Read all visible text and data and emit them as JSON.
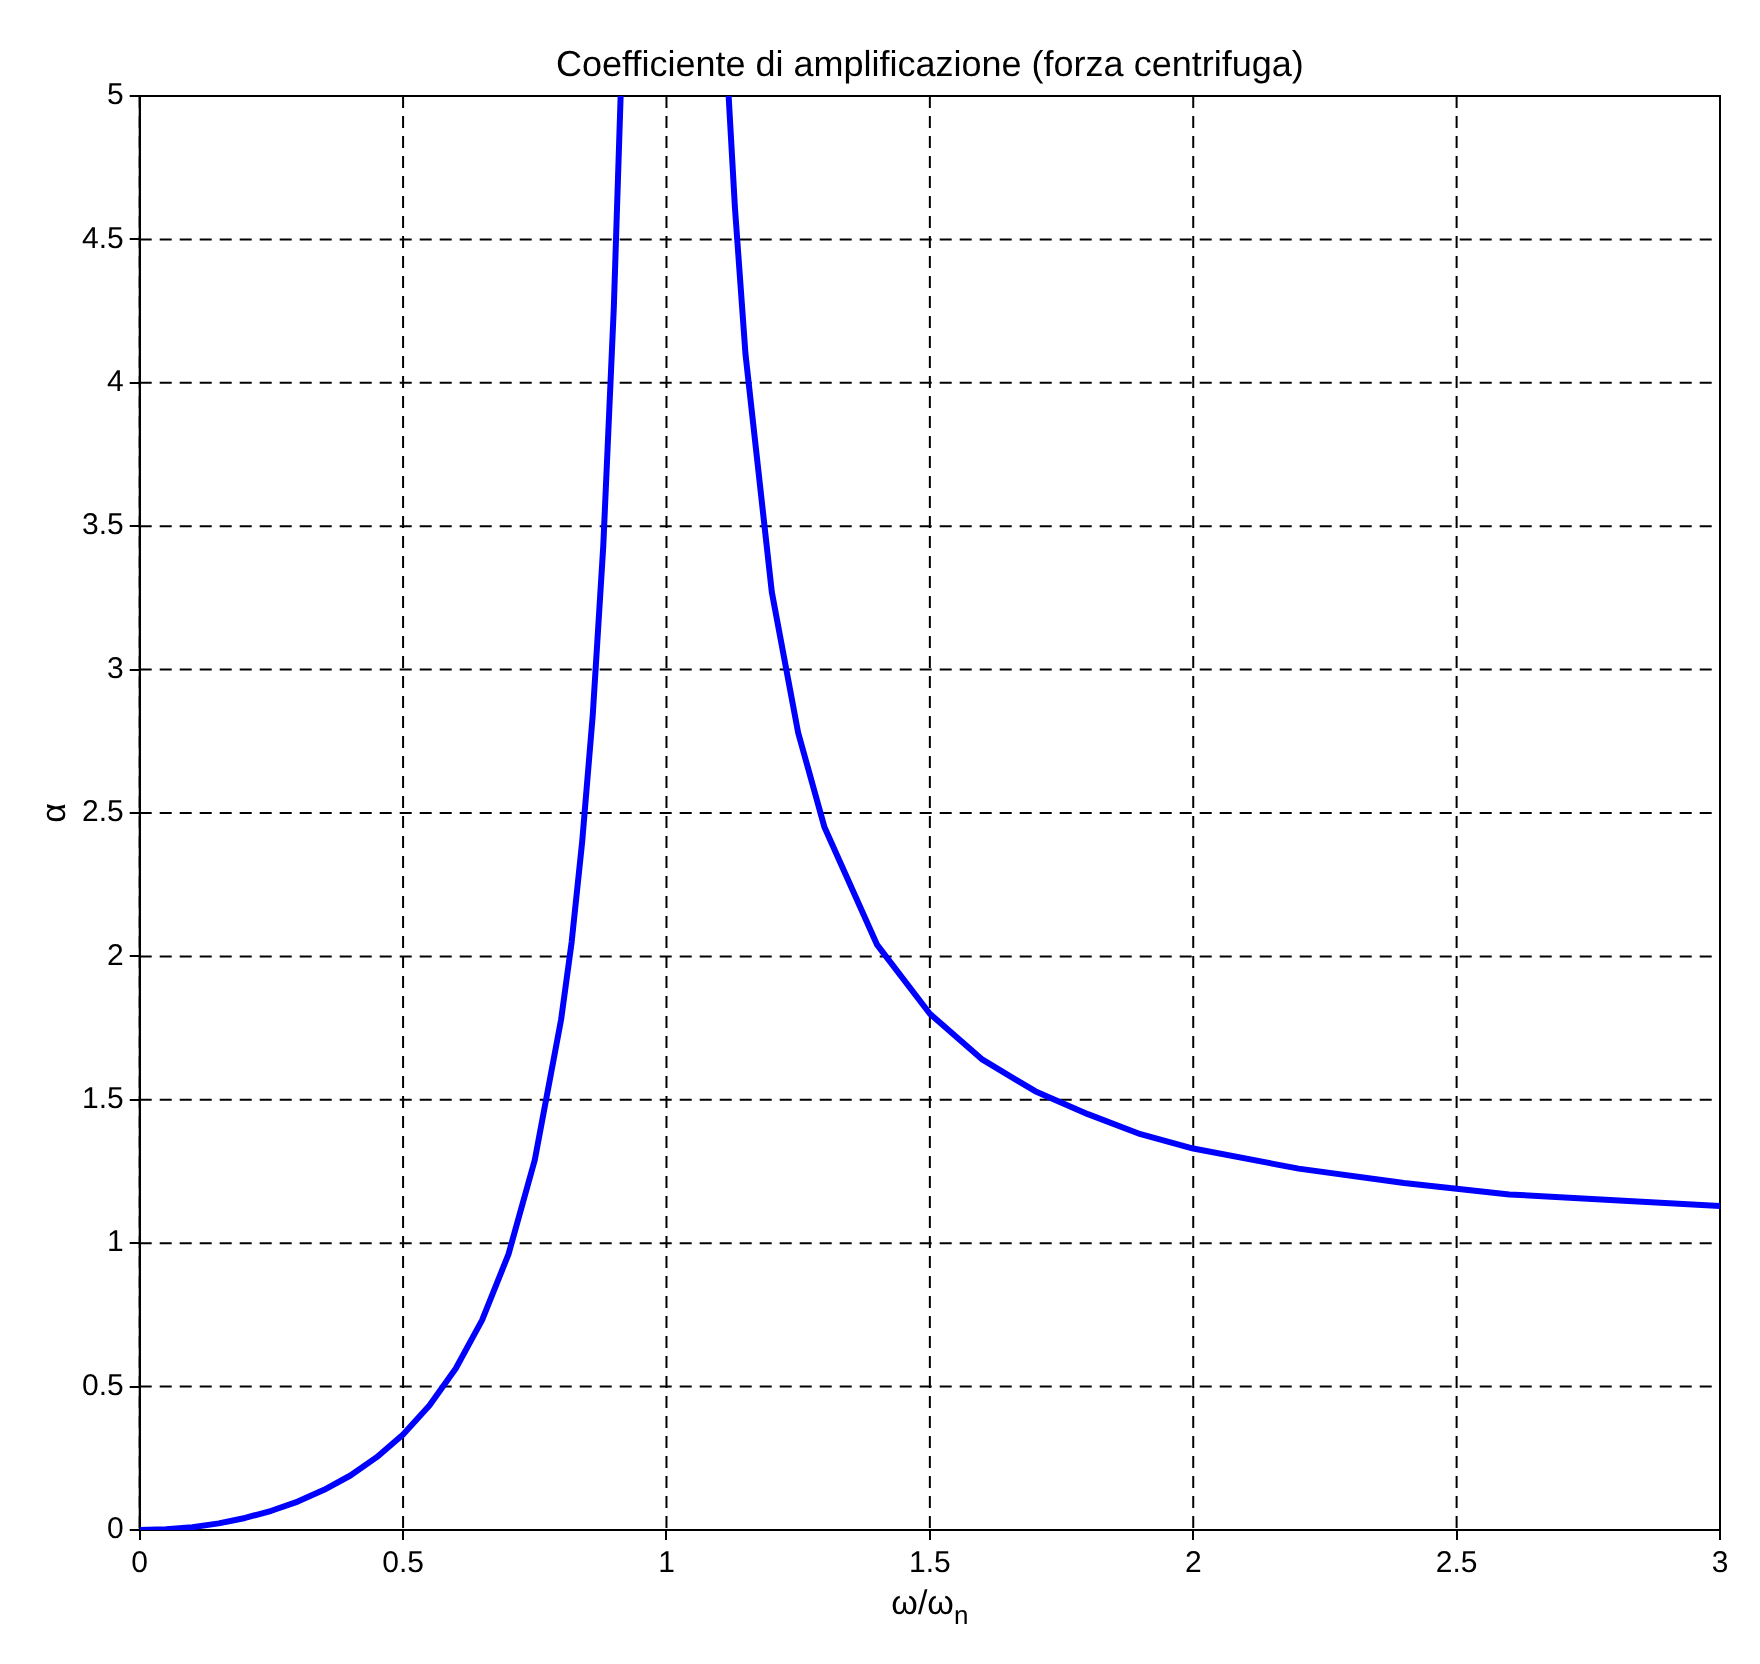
{
  "chart_data": {
    "type": "line",
    "title": "Coefficiente di amplificazione (forza centrifuga)",
    "xlabel": "ω/ω$_{n}$",
    "ylabel": "α",
    "x": [
      0,
      0.05,
      0.1,
      0.15,
      0.2,
      0.25,
      0.3,
      0.35,
      0.4,
      0.45,
      0.5,
      0.55,
      0.6,
      0.65,
      0.7,
      0.75,
      0.8,
      0.82,
      0.84,
      0.86,
      0.88,
      0.9,
      0.913,
      1,
      1.118,
      1.13,
      1.15,
      1.2,
      1.25,
      1.3,
      1.4,
      1.5,
      1.6,
      1.7,
      1.8,
      1.9,
      2,
      2.2,
      2.4,
      2.6,
      2.8,
      3
    ],
    "series": [
      {
        "color": "#0000ff",
        "values": [
          0,
          0.003,
          0.01,
          0.023,
          0.042,
          0.067,
          0.099,
          0.14,
          0.19,
          0.254,
          0.333,
          0.434,
          0.563,
          0.732,
          0.961,
          1.29,
          1.78,
          2.05,
          2.4,
          2.84,
          3.43,
          4.26,
          5,
          null,
          5,
          4.61,
          4.1,
          3.27,
          2.78,
          2.45,
          2.04,
          1.8,
          1.64,
          1.53,
          1.45,
          1.38,
          1.33,
          1.26,
          1.21,
          1.17,
          1.15,
          1.13
        ]
      }
    ],
    "xlim": [
      0,
      3
    ],
    "xticks": [
      0,
      0.5,
      1,
      1.5,
      2,
      2.5,
      3
    ],
    "ylim": [
      0,
      5
    ],
    "yticks": [
      0,
      0.5,
      1,
      1.5,
      2,
      2.5,
      3,
      3.5,
      4,
      4.5,
      5
    ],
    "grid": true,
    "line_style": "solid",
    "marker": "none"
  }
}
